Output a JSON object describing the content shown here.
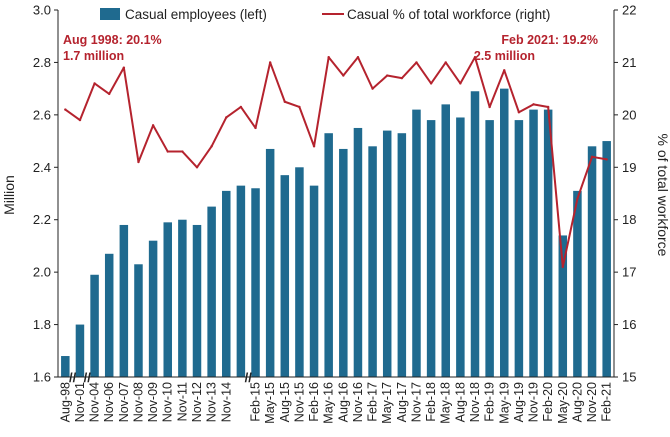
{
  "chart_data": {
    "type": "bar",
    "title": "",
    "ylabel": "Million",
    "y2label": "% of total workforce",
    "ylim": [
      1.6,
      3.0
    ],
    "y2lim": [
      15,
      22
    ],
    "yticks": [
      "1.6",
      "1.8",
      "2.0",
      "2.2",
      "2.4",
      "2.6",
      "2.8",
      "3.0"
    ],
    "y2ticks": [
      "15",
      "16",
      "17",
      "18",
      "19",
      "20",
      "21",
      "22"
    ],
    "grid": false,
    "legend_position": "top",
    "axis_break_marks": [
      "//",
      "//",
      "//"
    ],
    "series": [
      {
        "name": "Casual employees (left)",
        "type": "bar",
        "axis": "left",
        "color": "#1f6a8f",
        "values": [
          1.68,
          1.8,
          1.99,
          2.07,
          2.18,
          2.03,
          2.12,
          2.19,
          2.2,
          2.18,
          2.25,
          2.31,
          2.33,
          2.32,
          2.47,
          2.37,
          2.4,
          2.33,
          2.53,
          2.47,
          2.55,
          2.48,
          2.54,
          2.53,
          2.62,
          2.58,
          2.64,
          2.59,
          2.69,
          2.58,
          2.7,
          2.58,
          2.62,
          2.62,
          2.14,
          2.31,
          2.48,
          2.5
        ]
      },
      {
        "name": "Casual % of total workforce (right)",
        "type": "line",
        "axis": "right",
        "color": "#b5232e",
        "values": [
          20.1,
          19.9,
          20.6,
          20.4,
          20.9,
          19.1,
          19.8,
          19.3,
          19.3,
          19.0,
          19.4,
          19.95,
          20.15,
          19.75,
          21.0,
          20.25,
          20.15,
          19.4,
          21.1,
          20.75,
          21.1,
          20.5,
          20.75,
          20.7,
          21.0,
          20.6,
          21.0,
          20.6,
          21.1,
          20.15,
          20.85,
          20.05,
          20.2,
          20.15,
          17.1,
          18.4,
          19.2,
          19.15
        ]
      }
    ],
    "x_labels": [
      "Aug-98",
      "Nov-01",
      "Nov-04",
      "Nov-06",
      "Nov-07",
      "Nov-08",
      "Nov-09",
      "Nov-10",
      "Nov-11",
      "Nov-12",
      "Nov-13",
      "Nov-14",
      "Feb-15",
      "May-15",
      "Aug-15",
      "Nov-15",
      "Feb-16",
      "May-16",
      "Aug-16",
      "Nov-16",
      "Feb-17",
      "May-17",
      "Aug-17",
      "Nov-17",
      "Feb-18",
      "May-18",
      "Aug-18",
      "Nov-18",
      "Feb-19",
      "May-19",
      "Aug-19",
      "Nov-19",
      "Feb-20",
      "May-20",
      "Aug-20",
      "Nov-20",
      "Feb-21"
    ],
    "x_label_slots": [
      0,
      1,
      2,
      3,
      4,
      5,
      6,
      7,
      8,
      9,
      10,
      11,
      13,
      14,
      15,
      16,
      17,
      18,
      19,
      20,
      21,
      22,
      23,
      24,
      25,
      26,
      27,
      28,
      29,
      30,
      31,
      32,
      33,
      34,
      35,
      36,
      37
    ],
    "axis_break_after_slots": [
      0,
      1,
      12
    ],
    "annotations": [
      {
        "lines": [
          "Aug 1998: 20.1%",
          "1.7 million"
        ],
        "color": "#b5232e",
        "anchor": "top-left"
      },
      {
        "lines": [
          "Feb 2021: 19.2%",
          "2.5 million"
        ],
        "color": "#b5232e",
        "anchor": "top-right"
      }
    ]
  }
}
